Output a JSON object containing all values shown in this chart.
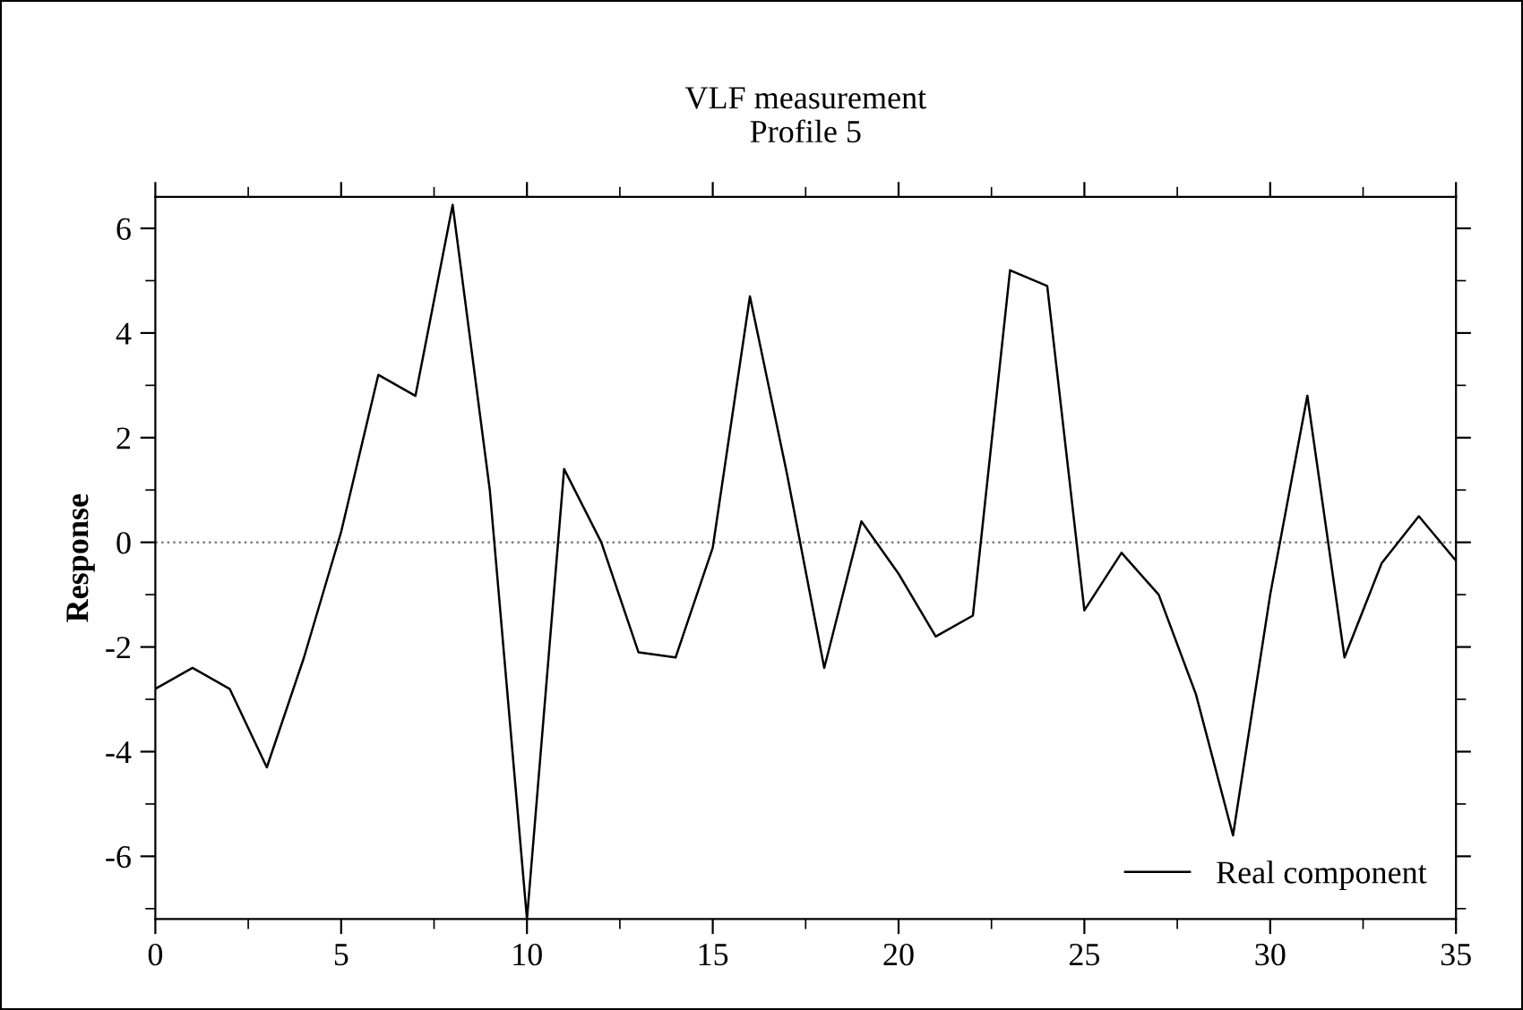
{
  "chart_data": {
    "type": "line",
    "title": "VLF measurement\nProfile 5",
    "ylabel": "Response",
    "x": [
      0,
      1,
      2,
      3,
      4,
      5,
      6,
      7,
      8,
      9,
      10,
      11,
      12,
      13,
      14,
      15,
      16,
      17,
      18,
      19,
      20,
      21,
      22,
      23,
      24,
      25,
      26,
      27,
      28,
      29,
      30,
      31,
      32,
      33,
      34,
      35
    ],
    "series": [
      {
        "name": "Real component",
        "color": "#000000",
        "values": [
          -2.8,
          -2.4,
          -2.8,
          -4.3,
          -2.2,
          0.2,
          3.2,
          2.8,
          6.45,
          1.0,
          -7.2,
          1.4,
          0.0,
          -2.1,
          -2.2,
          -0.1,
          4.7,
          1.3,
          -2.4,
          0.4,
          -0.6,
          -1.8,
          -1.4,
          5.2,
          4.9,
          -1.3,
          -0.2,
          -1.0,
          -2.9,
          -5.6,
          -1.0,
          2.8,
          -2.2,
          -0.4,
          0.5,
          -0.35
        ]
      }
    ],
    "xlim": [
      0,
      35
    ],
    "xticks": [
      0,
      5,
      10,
      15,
      20,
      25,
      30,
      35
    ],
    "ylim": [
      -7.2,
      6.6
    ],
    "yticks": [
      -6,
      -4,
      -2,
      0,
      2,
      4,
      6
    ],
    "ref_lines": [
      {
        "axis": "y",
        "value": 0,
        "color": "#808080",
        "line_style": "dotted"
      }
    ],
    "legend": "bottom right",
    "grid": false,
    "marker": "none",
    "line_style": "solid"
  }
}
